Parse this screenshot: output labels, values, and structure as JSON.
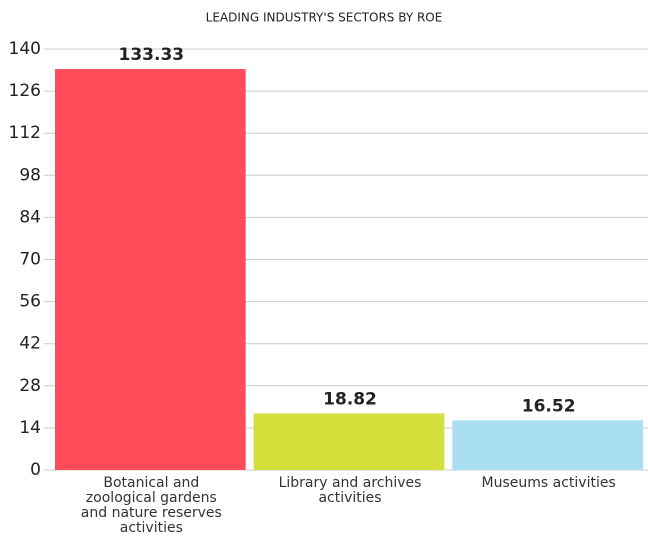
{
  "chart_data": {
    "type": "bar",
    "title": "LEADING INDUSTRY'S SECTORS BY ROE",
    "categories": [
      "Botanical and zoological gardens and nature reserves activities",
      "Library and archives activities",
      "Museums activities"
    ],
    "values": [
      133.33,
      18.82,
      16.52
    ],
    "colors": [
      "#ff4b5a",
      "#d4e03a",
      "#aadff3"
    ],
    "ylim": [
      0,
      140
    ],
    "yticks": [
      0,
      14,
      28,
      42,
      56,
      70,
      84,
      98,
      112,
      126,
      140
    ],
    "grid": true
  }
}
